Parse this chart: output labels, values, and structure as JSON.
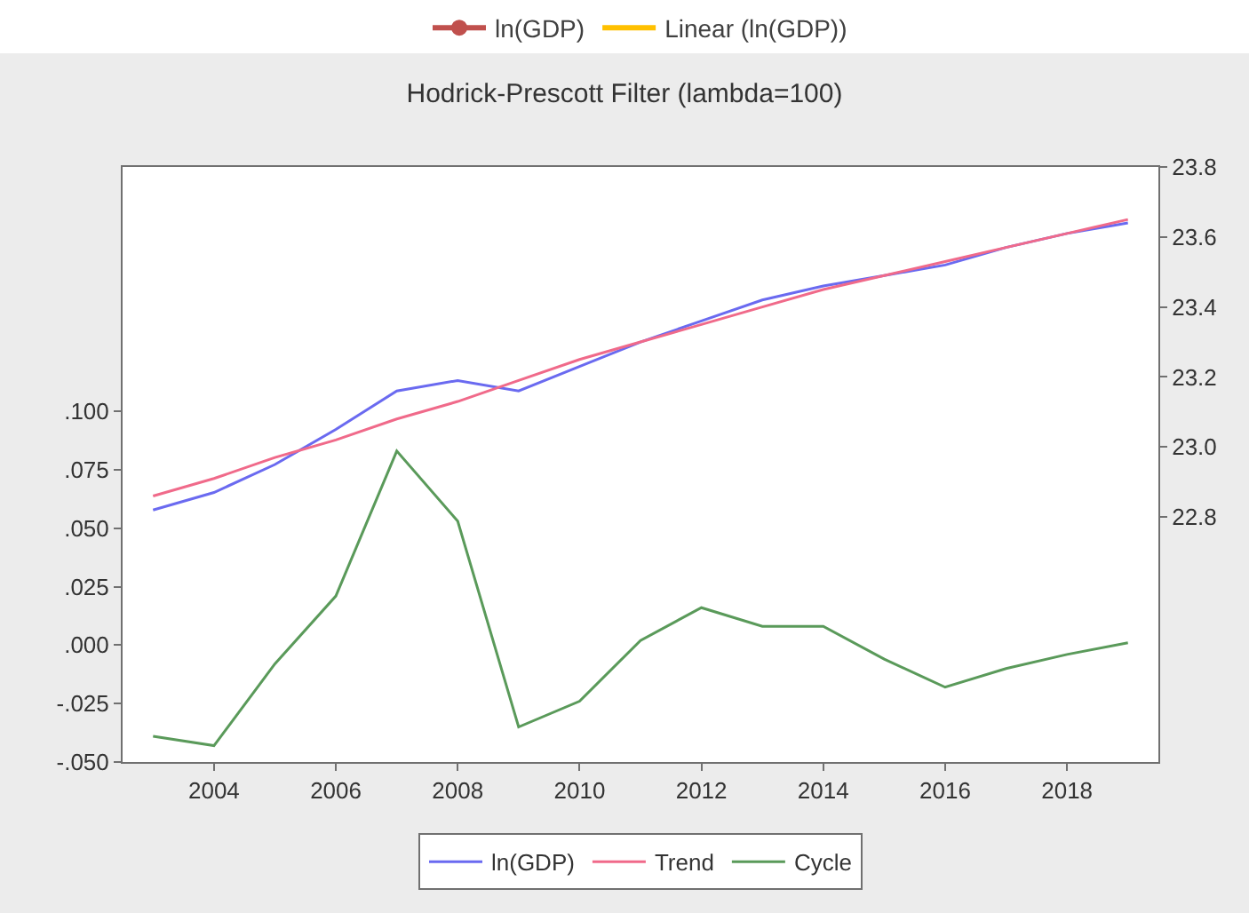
{
  "chart_data": {
    "type": "line",
    "title": "Hodrick-Prescott Filter (lambda=100)",
    "x": [
      2003,
      2004,
      2005,
      2006,
      2007,
      2008,
      2009,
      2010,
      2011,
      2012,
      2013,
      2014,
      2015,
      2016,
      2017,
      2018,
      2019
    ],
    "series": [
      {
        "name": "ln(GDP)",
        "color": "#6a6af0",
        "axis": "y2",
        "values": [
          22.82,
          22.87,
          22.95,
          23.05,
          23.16,
          23.19,
          23.16,
          23.23,
          23.3,
          23.36,
          23.42,
          23.46,
          23.49,
          23.52,
          23.57,
          23.61,
          23.64
        ]
      },
      {
        "name": "Trend",
        "color": "#f06a8a",
        "axis": "y2",
        "values": [
          22.86,
          22.91,
          22.97,
          23.02,
          23.08,
          23.13,
          23.19,
          23.25,
          23.3,
          23.35,
          23.4,
          23.45,
          23.49,
          23.53,
          23.57,
          23.61,
          23.65
        ]
      },
      {
        "name": "Cycle",
        "color": "#5a9a5a",
        "values": [
          -0.039,
          -0.043,
          -0.008,
          0.021,
          0.083,
          0.053,
          -0.035,
          -0.024,
          0.002,
          0.016,
          0.008,
          0.008,
          -0.006,
          -0.018,
          -0.01,
          -0.004,
          0.001
        ]
      }
    ],
    "xlim": [
      2002.5,
      2019.5
    ],
    "xticks": [
      2004,
      2006,
      2008,
      2010,
      2012,
      2014,
      2016,
      2018
    ],
    "ylim": [
      -0.05,
      0.2045
    ],
    "yticks": [
      {
        "value": -0.05,
        "label": "-.050"
      },
      {
        "value": -0.025,
        "label": "-.025"
      },
      {
        "value": 0,
        "label": ".000"
      },
      {
        "value": 0.025,
        "label": ".025"
      },
      {
        "value": 0.05,
        "label": ".050"
      },
      {
        "value": 0.075,
        "label": ".075"
      },
      {
        "value": 0.1,
        "label": ".100"
      }
    ],
    "y2lim": [
      22.1,
      23.8
    ],
    "y2ticks": [
      {
        "value": 22.8,
        "label": "22.8"
      },
      {
        "value": 23.0,
        "label": "23.0"
      },
      {
        "value": 23.2,
        "label": "23.2"
      },
      {
        "value": 23.4,
        "label": "23.4"
      },
      {
        "value": 23.6,
        "label": "23.6"
      },
      {
        "value": 23.8,
        "label": "23.8"
      }
    ],
    "annotations": [
      "ln(GDP)",
      "Linear (ln(GDP))"
    ],
    "legend": "bottom",
    "grid": false,
    "marker": "none",
    "line_style": "solid"
  }
}
